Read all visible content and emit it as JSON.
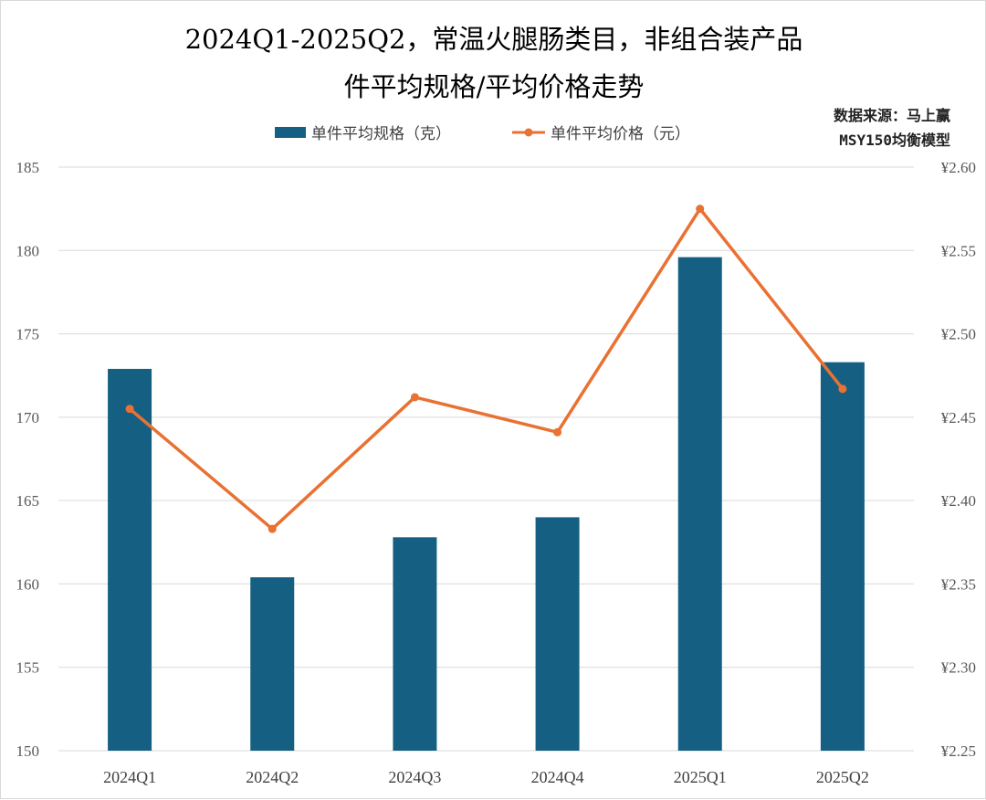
{
  "chart_data": {
    "type": "bar+line",
    "title_line1": "2024Q1-2025Q2，常温火腿肠类目，非组合装产品",
    "title_line2": "件平均规格/平均价格走势",
    "source_line1": "数据来源：马上赢",
    "source_line2": "MSY150均衡模型",
    "categories": [
      "2024Q1",
      "2024Q2",
      "2024Q3",
      "2024Q4",
      "2025Q1",
      "2025Q2"
    ],
    "series": [
      {
        "name": "单件平均规格（克）",
        "type": "bar",
        "axis": "left",
        "color": "#156082",
        "values": [
          172.9,
          160.4,
          162.8,
          164.0,
          179.6,
          173.3
        ]
      },
      {
        "name": "单件平均价格（元）",
        "type": "line",
        "axis": "right",
        "color": "#E97132",
        "values": [
          2.455,
          2.383,
          2.462,
          2.441,
          2.575,
          2.467
        ]
      }
    ],
    "left_axis": {
      "ylim": [
        150,
        185
      ],
      "ticks": [
        "150",
        "155",
        "160",
        "165",
        "170",
        "175",
        "180",
        "185"
      ]
    },
    "right_axis": {
      "ylim": [
        2.25,
        2.6
      ],
      "ticks": [
        "¥2.25",
        "¥2.30",
        "¥2.35",
        "¥2.40",
        "¥2.45",
        "¥2.50",
        "¥2.55",
        "¥2.60"
      ]
    },
    "grid": true,
    "legend": "top-center"
  }
}
